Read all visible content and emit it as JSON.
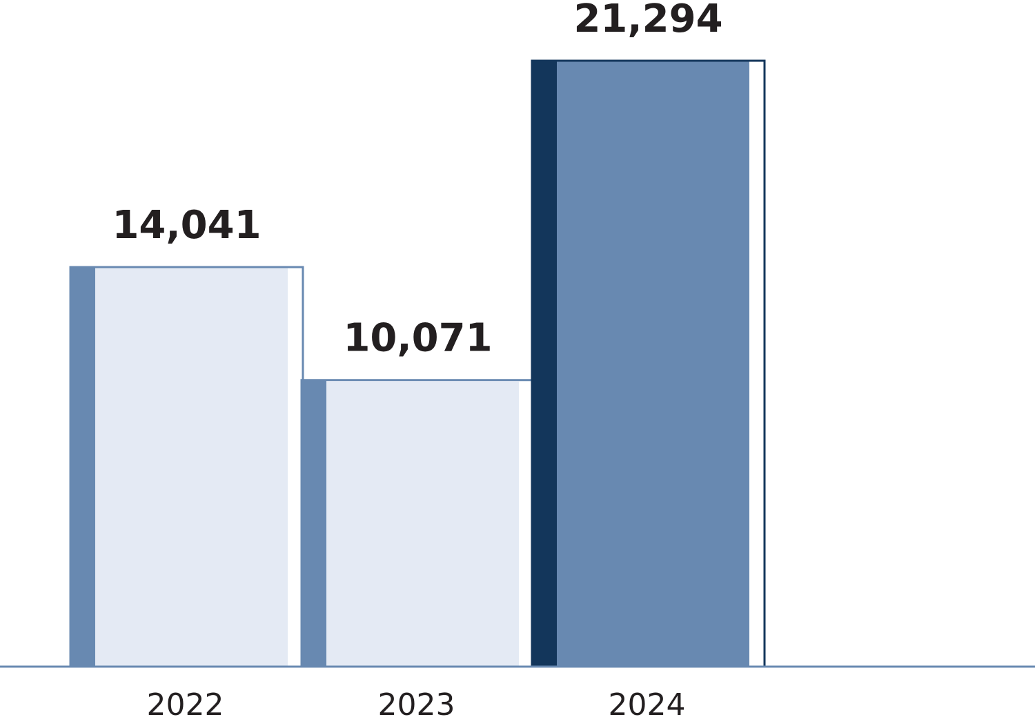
{
  "chart_data": {
    "type": "bar",
    "categories": [
      "2022",
      "2023",
      "2024"
    ],
    "values": [
      14041,
      10071,
      21294
    ],
    "value_labels": [
      "14,041",
      "10,071",
      "21,294"
    ],
    "title": "",
    "xlabel": "",
    "ylabel": "",
    "ylim": [
      0,
      21294
    ],
    "grid": false,
    "legend": "none",
    "highlight_index": 2
  },
  "colors": {
    "bar_fill": "#e4eaf4",
    "bar_edge": "#6889b1",
    "highlight_fill": "#6889b1",
    "highlight_edge": "#13365b",
    "axis_line": "#6889b1",
    "text": "#231f20"
  }
}
